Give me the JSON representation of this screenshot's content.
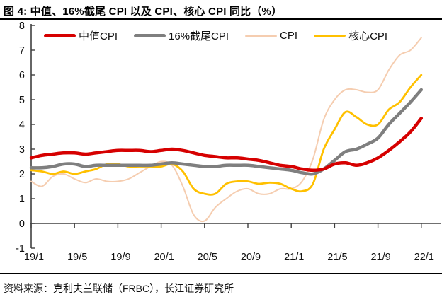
{
  "page": {
    "title": "图 4: 中值、16%截尾 CPI 以及 CPI、核心 CPI 同比（%）",
    "source": "资料来源：克利夫兰联储（FRBC），长江证券研究所"
  },
  "chart_data": {
    "type": "line",
    "title": "中值、16%截尾 CPI 以及 CPI、核心 CPI 同比（%）",
    "x_start": "19/1",
    "x_end": "22/1",
    "x_tick_labels": [
      "19/1",
      "19/5",
      "19/9",
      "20/1",
      "20/5",
      "20/9",
      "21/1",
      "21/5",
      "21/9",
      "22/1"
    ],
    "y_ticks": [
      8,
      7,
      6,
      5,
      4,
      3,
      2,
      1,
      0,
      -1
    ],
    "ylim": [
      -1,
      8
    ],
    "grid": false,
    "legend_position": "top",
    "axis_color": "#404040",
    "series": [
      {
        "name": "中值CPI",
        "color": "#d60000",
        "width": 4.5,
        "values": [
          2.65,
          2.75,
          2.8,
          2.85,
          2.85,
          2.8,
          2.85,
          2.9,
          2.95,
          2.95,
          2.95,
          2.9,
          2.95,
          3.0,
          2.95,
          2.85,
          2.75,
          2.7,
          2.65,
          2.65,
          2.6,
          2.55,
          2.45,
          2.35,
          2.3,
          2.2,
          2.15,
          2.2,
          2.4,
          2.45,
          2.35,
          2.45,
          2.65,
          2.95,
          3.3,
          3.7,
          4.25
        ]
      },
      {
        "name": "16%截尾CPI",
        "color": "#7f7f7f",
        "width": 4.5,
        "values": [
          2.25,
          2.25,
          2.3,
          2.4,
          2.4,
          2.3,
          2.35,
          2.35,
          2.35,
          2.35,
          2.35,
          2.35,
          2.4,
          2.45,
          2.4,
          2.35,
          2.3,
          2.3,
          2.35,
          2.35,
          2.35,
          2.3,
          2.25,
          2.2,
          2.15,
          2.05,
          2.0,
          2.2,
          2.55,
          2.9,
          3.0,
          3.2,
          3.45,
          4.0,
          4.45,
          4.9,
          5.4
        ]
      },
      {
        "name": "CPI",
        "color": "#f5cdb0",
        "width": 2,
        "values": [
          1.7,
          1.5,
          1.9,
          2.0,
          1.8,
          1.65,
          1.8,
          1.7,
          1.7,
          1.8,
          2.05,
          2.3,
          2.5,
          2.35,
          1.5,
          0.35,
          0.1,
          0.65,
          1.0,
          1.3,
          1.4,
          1.2,
          1.2,
          1.4,
          1.4,
          1.7,
          2.6,
          4.2,
          5.0,
          5.4,
          5.4,
          5.3,
          5.4,
          6.2,
          6.8,
          7.0,
          7.5
        ]
      },
      {
        "name": "核心CPI",
        "color": "#ffc000",
        "width": 2.8,
        "values": [
          2.15,
          2.1,
          2.0,
          2.1,
          2.0,
          2.1,
          2.2,
          2.4,
          2.4,
          2.3,
          2.3,
          2.3,
          2.3,
          2.4,
          2.1,
          1.4,
          1.2,
          1.2,
          1.6,
          1.7,
          1.7,
          1.6,
          1.65,
          1.6,
          1.4,
          1.3,
          1.6,
          3.0,
          3.8,
          4.5,
          4.3,
          4.0,
          4.0,
          4.6,
          4.9,
          5.5,
          6.0
        ]
      }
    ]
  }
}
